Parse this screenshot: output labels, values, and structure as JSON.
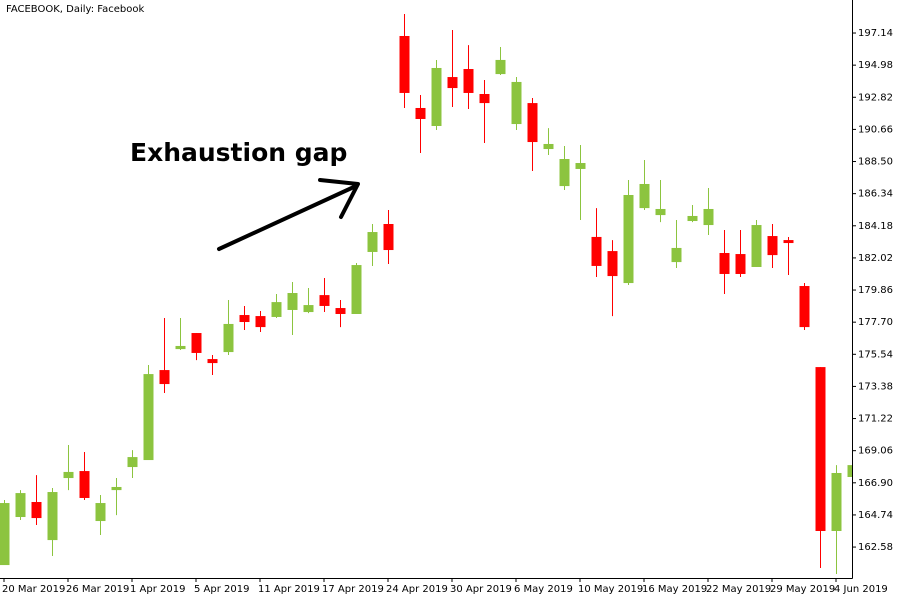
{
  "chart_data": {
    "type": "candlestick",
    "title": "FACEBOOK, Daily:  Facebook",
    "annotation": "Exhaustion gap",
    "up_color": "#8cc43f",
    "down_color": "#ff0000",
    "categories": [
      "20 Mar 2019",
      null,
      null,
      null,
      "26 Mar 2019",
      null,
      null,
      null,
      "1 Apr 2019",
      null,
      null,
      null,
      "5 Apr 2019",
      null,
      null,
      null,
      "11 Apr 2019",
      null,
      null,
      null,
      "17 Apr 2019",
      null,
      null,
      null,
      "24 Apr 2019",
      null,
      null,
      null,
      "30 Apr 2019",
      null,
      null,
      null,
      "6 May 2019",
      null,
      null,
      null,
      "10 May 2019",
      null,
      null,
      null,
      "16 May 2019",
      null,
      null,
      null,
      "22 May 2019",
      null,
      null,
      null,
      "29 May 2019",
      null,
      null,
      null,
      "4 Jun 2019",
      null
    ],
    "open": [
      161.37,
      164.6,
      165.61,
      163.05,
      167.22,
      167.69,
      164.33,
      166.41,
      167.96,
      168.43,
      174.48,
      175.89,
      176.97,
      175.22,
      175.69,
      178.18,
      178.11,
      178.05,
      178.52,
      178.38,
      179.52,
      178.65,
      178.25,
      182.42,
      184.3,
      196.94,
      192.1,
      190.89,
      194.18,
      194.72,
      193.04,
      194.38,
      191.02,
      192.43,
      189.34,
      186.85,
      188.0,
      183.43,
      182.48,
      180.33,
      185.37,
      184.9,
      181.74,
      184.5,
      184.23,
      182.35,
      182.28,
      181.41,
      183.49,
      183.22,
      180.13,
      174.68,
      163.66,
      167.29
    ],
    "high": [
      165.74,
      166.41,
      167.42,
      166.55,
      169.44,
      168.97,
      166.08,
      167.22,
      169.1,
      174.82,
      177.98,
      177.98,
      176.97,
      175.49,
      179.19,
      178.79,
      178.45,
      179.59,
      180.4,
      180.0,
      180.67,
      179.19,
      181.68,
      184.3,
      185.24,
      198.42,
      192.97,
      195.33,
      197.34,
      196.33,
      193.98,
      196.2,
      194.18,
      192.77,
      190.75,
      189.54,
      189.61,
      185.37,
      183.22,
      187.26,
      188.6,
      187.26,
      184.57,
      185.58,
      186.72,
      183.9,
      183.9,
      184.57,
      184.3,
      183.43,
      180.33,
      174.68,
      168.09,
      168.77
    ],
    "low": [
      161.37,
      164.4,
      164.06,
      161.98,
      166.41,
      165.74,
      163.39,
      164.73,
      167.22,
      168.43,
      172.94,
      175.83,
      175.15,
      174.15,
      175.49,
      177.17,
      177.04,
      177.98,
      176.84,
      178.31,
      178.38,
      177.37,
      178.25,
      181.48,
      181.61,
      192.1,
      189.07,
      190.62,
      192.17,
      192.03,
      189.75,
      194.32,
      190.62,
      187.86,
      188.94,
      186.59,
      184.57,
      180.74,
      178.11,
      180.2,
      185.24,
      184.43,
      181.34,
      184.43,
      183.56,
      179.59,
      180.74,
      181.41,
      181.34,
      180.87,
      177.17,
      161.17,
      160.77,
      167.09
    ],
    "close": [
      165.54,
      166.21,
      164.53,
      166.28,
      167.63,
      165.88,
      165.54,
      166.62,
      168.63,
      174.21,
      173.54,
      176.1,
      175.63,
      174.95,
      177.58,
      177.71,
      177.37,
      179.05,
      179.66,
      178.85,
      178.79,
      178.25,
      181.54,
      183.76,
      182.55,
      193.11,
      191.36,
      194.79,
      193.44,
      193.11,
      192.43,
      195.33,
      193.85,
      189.81,
      189.68,
      188.67,
      188.4,
      181.48,
      180.8,
      186.25,
      186.99,
      185.31,
      182.69,
      184.84,
      185.31,
      180.94,
      180.94,
      184.23,
      182.21,
      183.02,
      177.37,
      163.66,
      167.56,
      168.09
    ],
    "ylim": [
      160.5,
      199.36
    ],
    "yticks": [
      162.58,
      164.74,
      {
        "value": 166.9,
        "label": "166.90"
      },
      169.06,
      171.22,
      173.38,
      175.54,
      {
        "value": 177.7,
        "label": "177.70"
      },
      179.86,
      182.02,
      184.18,
      186.34,
      {
        "value": 188.5,
        "label": "188.50"
      },
      190.66,
      192.82,
      194.98,
      197.14
    ]
  }
}
